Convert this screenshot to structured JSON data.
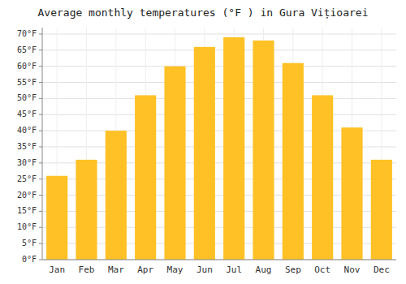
{
  "chart_data": {
    "type": "bar",
    "title": "Average monthly temperatures (°F ) in Gura Vițioarei",
    "categories": [
      "Jan",
      "Feb",
      "Mar",
      "Apr",
      "May",
      "Jun",
      "Jul",
      "Aug",
      "Sep",
      "Oct",
      "Nov",
      "Dec"
    ],
    "values": [
      26,
      31,
      40,
      51,
      60,
      66,
      69,
      68,
      61,
      51,
      41,
      31
    ],
    "color": "#FFC125",
    "ylim": [
      0,
      72
    ],
    "yticks": [
      {
        "value": 0,
        "label": "0°F"
      },
      {
        "value": 5,
        "label": "5°F"
      },
      {
        "value": 10,
        "label": "10°F"
      },
      {
        "value": 15,
        "label": "15°F"
      },
      {
        "value": 20,
        "label": "20°F"
      },
      {
        "value": 25,
        "label": "25°F"
      },
      {
        "value": 30,
        "label": "30°F"
      },
      {
        "value": 35,
        "label": "35°F"
      },
      {
        "value": 40,
        "label": "40°F"
      },
      {
        "value": 45,
        "label": "45°F"
      },
      {
        "value": 50,
        "label": "50°F"
      },
      {
        "value": 55,
        "label": "55°F"
      },
      {
        "value": 60,
        "label": "60°F"
      },
      {
        "value": 65,
        "label": "65°F"
      },
      {
        "value": 70,
        "label": "70°F"
      }
    ],
    "grid": true
  }
}
